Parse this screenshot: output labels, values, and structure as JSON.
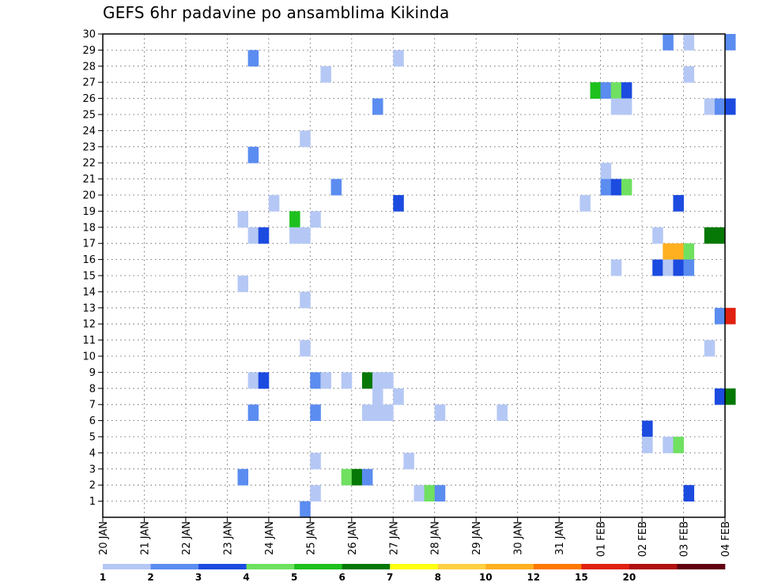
{
  "title": "GEFS 6hr padavine po ansamblima Kikinda",
  "chart_data": {
    "type": "heatmap",
    "title": "GEFS 6hr padavine po ansamblima Kikinda",
    "ylim": [
      0,
      30
    ],
    "y_ticks": [
      1,
      2,
      3,
      4,
      5,
      6,
      7,
      8,
      9,
      10,
      11,
      12,
      13,
      14,
      15,
      16,
      17,
      18,
      19,
      20,
      21,
      22,
      23,
      24,
      25,
      26,
      27,
      28,
      29,
      30
    ],
    "x_ticks": [
      "20 JAN",
      "21 JAN",
      "22 JAN",
      "23 JAN",
      "24 JAN",
      "25 JAN",
      "26 JAN",
      "27 JAN",
      "28 JAN",
      "29 JAN",
      "30 JAN",
      "31 JAN",
      "01 FEB",
      "02 FEB",
      "03 FEB",
      "04 FEB"
    ],
    "grid": true,
    "legend_levels": [
      "1",
      "2",
      "3",
      "4",
      "5",
      "6",
      "7",
      "8",
      "10",
      "12",
      "15",
      "20"
    ],
    "legend_colors": [
      "#b5c8f5",
      "#5b8cf0",
      "#1c4be0",
      "#6fe060",
      "#1ec01e",
      "#057805",
      "#ffff10",
      "#ffd040",
      "#ffb020",
      "#ff7800",
      "#e02010",
      "#b01010",
      "#600010"
    ],
    "cells": [
      {
        "m": 30,
        "t": "02 FEB 12",
        "c": 1
      },
      {
        "m": 30,
        "t": "03 FEB 00",
        "c": 0
      },
      {
        "m": 30,
        "t": "04 FEB 00",
        "c": 1
      },
      {
        "m": 29,
        "t": "23 JAN 12",
        "c": 1
      },
      {
        "m": 29,
        "t": "27 JAN 00",
        "c": 0
      },
      {
        "m": 28,
        "t": "25 JAN 06",
        "c": 0
      },
      {
        "m": 28,
        "t": "03 FEB 00",
        "c": 0
      },
      {
        "m": 27,
        "t": "31 JAN 18",
        "c": 4
      },
      {
        "m": 27,
        "t": "01 FEB 00",
        "c": 1
      },
      {
        "m": 27,
        "t": "01 FEB 06",
        "c": 3
      },
      {
        "m": 27,
        "t": "01 FEB 12",
        "c": 2
      },
      {
        "m": 26,
        "t": "26 JAN 12",
        "c": 1
      },
      {
        "m": 26,
        "t": "01 FEB 06",
        "c": 0
      },
      {
        "m": 26,
        "t": "01 FEB 12",
        "c": 0
      },
      {
        "m": 26,
        "t": "03 FEB 12",
        "c": 0
      },
      {
        "m": 26,
        "t": "03 FEB 18",
        "c": 1
      },
      {
        "m": 26,
        "t": "04 FEB 00",
        "c": 2
      },
      {
        "m": 24,
        "t": "24 JAN 18",
        "c": 0
      },
      {
        "m": 23,
        "t": "23 JAN 12",
        "c": 1
      },
      {
        "m": 22,
        "t": "01 FEB 00",
        "c": 0
      },
      {
        "m": 21,
        "t": "25 JAN 12",
        "c": 1
      },
      {
        "m": 21,
        "t": "01 FEB 00",
        "c": 1
      },
      {
        "m": 21,
        "t": "01 FEB 06",
        "c": 2
      },
      {
        "m": 21,
        "t": "01 FEB 12",
        "c": 3
      },
      {
        "m": 20,
        "t": "24 JAN 00",
        "c": 0
      },
      {
        "m": 20,
        "t": "27 JAN 00",
        "c": 2
      },
      {
        "m": 20,
        "t": "31 JAN 12",
        "c": 0
      },
      {
        "m": 20,
        "t": "02 FEB 18",
        "c": 2
      },
      {
        "m": 19,
        "t": "23 JAN 06",
        "c": 0
      },
      {
        "m": 19,
        "t": "24 JAN 12",
        "c": 4
      },
      {
        "m": 19,
        "t": "25 JAN 00",
        "c": 0
      },
      {
        "m": 18,
        "t": "23 JAN 12",
        "c": 0
      },
      {
        "m": 18,
        "t": "23 JAN 18",
        "c": 2
      },
      {
        "m": 18,
        "t": "24 JAN 12",
        "c": 0
      },
      {
        "m": 18,
        "t": "24 JAN 18",
        "c": 0
      },
      {
        "m": 18,
        "t": "02 FEB 06",
        "c": 0
      },
      {
        "m": 18,
        "t": "03 FEB 12",
        "c": 5
      },
      {
        "m": 18,
        "t": "03 FEB 18",
        "c": 5
      },
      {
        "m": 17,
        "t": "02 FEB 12",
        "c": 8
      },
      {
        "m": 17,
        "t": "02 FEB 18",
        "c": 8
      },
      {
        "m": 17,
        "t": "03 FEB 00",
        "c": 3
      },
      {
        "m": 16,
        "t": "01 FEB 06",
        "c": 0
      },
      {
        "m": 16,
        "t": "02 FEB 06",
        "c": 2
      },
      {
        "m": 16,
        "t": "02 FEB 12",
        "c": 0
      },
      {
        "m": 16,
        "t": "02 FEB 18",
        "c": 2
      },
      {
        "m": 16,
        "t": "03 FEB 00",
        "c": 1
      },
      {
        "m": 15,
        "t": "23 JAN 06",
        "c": 0
      },
      {
        "m": 14,
        "t": "24 JAN 18",
        "c": 0
      },
      {
        "m": 13,
        "t": "03 FEB 18",
        "c": 1
      },
      {
        "m": 13,
        "t": "04 FEB 00",
        "c": 10
      },
      {
        "m": 11,
        "t": "24 JAN 18",
        "c": 0
      },
      {
        "m": 11,
        "t": "03 FEB 12",
        "c": 0
      },
      {
        "m": 9,
        "t": "23 JAN 12",
        "c": 0
      },
      {
        "m": 9,
        "t": "23 JAN 18",
        "c": 2
      },
      {
        "m": 9,
        "t": "25 JAN 00",
        "c": 1
      },
      {
        "m": 9,
        "t": "25 JAN 06",
        "c": 0
      },
      {
        "m": 9,
        "t": "25 JAN 18",
        "c": 0
      },
      {
        "m": 9,
        "t": "26 JAN 06",
        "c": 5
      },
      {
        "m": 9,
        "t": "26 JAN 12",
        "c": 0
      },
      {
        "m": 9,
        "t": "26 JAN 18",
        "c": 0
      },
      {
        "m": 8,
        "t": "26 JAN 12",
        "c": 0
      },
      {
        "m": 8,
        "t": "27 JAN 00",
        "c": 0
      },
      {
        "m": 8,
        "t": "03 FEB 18",
        "c": 2
      },
      {
        "m": 8,
        "t": "04 FEB 00",
        "c": 5
      },
      {
        "m": 7,
        "t": "23 JAN 12",
        "c": 1
      },
      {
        "m": 7,
        "t": "25 JAN 00",
        "c": 1
      },
      {
        "m": 7,
        "t": "26 JAN 06",
        "c": 0
      },
      {
        "m": 7,
        "t": "26 JAN 12",
        "c": 0
      },
      {
        "m": 7,
        "t": "26 JAN 18",
        "c": 0
      },
      {
        "m": 7,
        "t": "28 JAN 00",
        "c": 0
      },
      {
        "m": 7,
        "t": "29 JAN 12",
        "c": 0
      },
      {
        "m": 6,
        "t": "02 FEB 00",
        "c": 2
      },
      {
        "m": 5,
        "t": "02 FEB 00",
        "c": 0
      },
      {
        "m": 5,
        "t": "02 FEB 12",
        "c": 0
      },
      {
        "m": 5,
        "t": "02 FEB 18",
        "c": 3
      },
      {
        "m": 4,
        "t": "25 JAN 00",
        "c": 0
      },
      {
        "m": 4,
        "t": "27 JAN 06",
        "c": 0
      },
      {
        "m": 3,
        "t": "23 JAN 06",
        "c": 1
      },
      {
        "m": 3,
        "t": "25 JAN 18",
        "c": 3
      },
      {
        "m": 3,
        "t": "26 JAN 00",
        "c": 5
      },
      {
        "m": 3,
        "t": "26 JAN 06",
        "c": 1
      },
      {
        "m": 2,
        "t": "25 JAN 00",
        "c": 0
      },
      {
        "m": 2,
        "t": "27 JAN 12",
        "c": 0
      },
      {
        "m": 2,
        "t": "27 JAN 18",
        "c": 3
      },
      {
        "m": 2,
        "t": "28 JAN 00",
        "c": 1
      },
      {
        "m": 2,
        "t": "03 FEB 00",
        "c": 2
      },
      {
        "m": 1,
        "t": "24 JAN 18",
        "c": 1
      }
    ]
  }
}
